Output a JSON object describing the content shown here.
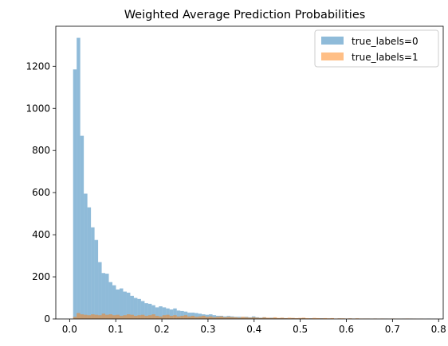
{
  "chart_data": {
    "type": "histogram",
    "title": "Weighted Average Prediction Probabilities",
    "xlabel": "",
    "ylabel": "",
    "xlim": [
      -0.03,
      0.81
    ],
    "ylim": [
      0,
      1390
    ],
    "xticks": [
      0.0,
      0.1,
      0.2,
      0.3,
      0.4,
      0.5,
      0.6,
      0.7,
      0.8
    ],
    "xtick_labels": [
      "0.0",
      "0.1",
      "0.2",
      "0.3",
      "0.4",
      "0.5",
      "0.6",
      "0.7",
      "0.8"
    ],
    "yticks": [
      0,
      200,
      400,
      600,
      800,
      1000,
      1200
    ],
    "ytick_labels": [
      "0",
      "200",
      "400",
      "600",
      "800",
      "1000",
      "1200"
    ],
    "grid": false,
    "legend_position": "top-right",
    "series": [
      {
        "name": "true_labels=0",
        "color": "#1f77b4",
        "bin_start": 0.0075,
        "bin_width": 0.00775,
        "counts": [
          1185,
          1335,
          870,
          595,
          530,
          435,
          375,
          270,
          218,
          215,
          175,
          160,
          140,
          145,
          130,
          125,
          110,
          100,
          95,
          85,
          75,
          72,
          65,
          55,
          60,
          55,
          50,
          45,
          50,
          40,
          38,
          35,
          30,
          30,
          28,
          25,
          22,
          20,
          22,
          18,
          15,
          15,
          12,
          14,
          12,
          10,
          10,
          9,
          10,
          8,
          12,
          8,
          6,
          8,
          5,
          6,
          5,
          4,
          5,
          4,
          3,
          4,
          3,
          3,
          4,
          2,
          3,
          2,
          2,
          3,
          2,
          2,
          2,
          1,
          2,
          1,
          1,
          2,
          1,
          1,
          0,
          1,
          1,
          0,
          1,
          0,
          0,
          1,
          0,
          1,
          0,
          0,
          1,
          0,
          1,
          0,
          0,
          0,
          0,
          1
        ]
      },
      {
        "name": "true_labels=1",
        "color": "#ff7f0e",
        "bin_start": 0.0075,
        "bin_width": 0.00775,
        "counts": [
          10,
          28,
          22,
          20,
          18,
          22,
          20,
          18,
          25,
          20,
          22,
          18,
          20,
          15,
          18,
          22,
          20,
          15,
          18,
          20,
          15,
          18,
          22,
          15,
          12,
          18,
          20,
          15,
          18,
          12,
          15,
          18,
          12,
          15,
          10,
          12,
          15,
          10,
          12,
          8,
          10,
          12,
          8,
          10,
          9,
          8,
          6,
          10,
          8,
          6,
          8,
          6,
          5,
          8,
          6,
          5,
          8,
          5,
          6,
          4,
          6,
          5,
          4,
          5,
          6,
          4,
          3,
          5,
          4,
          3,
          4,
          3,
          4,
          2,
          3,
          3,
          2,
          3,
          2,
          3,
          2,
          2,
          2,
          1,
          2,
          1,
          2,
          1,
          1,
          2,
          1,
          1,
          1,
          2,
          1,
          1,
          0,
          1,
          0,
          0
        ]
      }
    ]
  }
}
